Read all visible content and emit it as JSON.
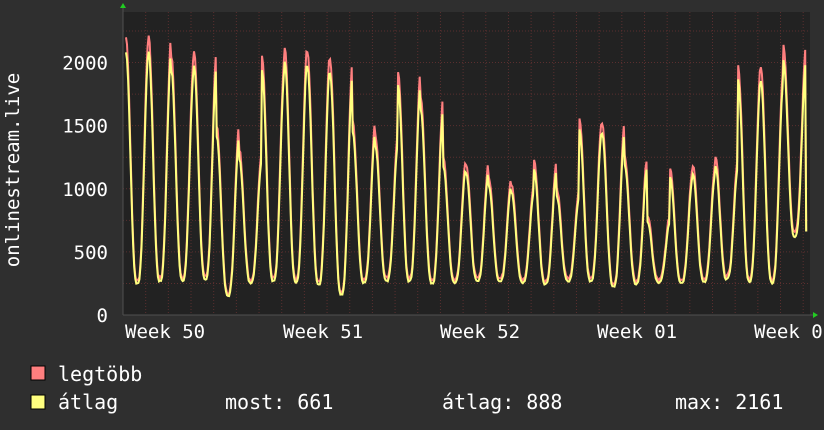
{
  "chart_data": {
    "type": "line",
    "ylabel": "onlinestream.live",
    "ylim": [
      0,
      2400
    ],
    "yticks": [
      0,
      500,
      1000,
      1500,
      2000
    ],
    "x_tick_labels": [
      "Week 50",
      "Week 51",
      "Week 52",
      "Week 01",
      "Week 0"
    ],
    "grid": true,
    "colors": {
      "background": "#2f2f2f",
      "plot_background": "#222222",
      "grid": "#5a2f2f",
      "axis": "#505050",
      "max_line": "#ff7f7f",
      "avg_line": "#ffff7f",
      "axis_arrow": "#22cc22"
    },
    "days": [
      {
        "peak": 2200,
        "trough": 270
      },
      {
        "peak": 2200,
        "trough": 290
      },
      {
        "peak": 2050,
        "trough": 300
      },
      {
        "peak": 2090,
        "trough": 300
      },
      {
        "peak": 1500,
        "trough": 170
      },
      {
        "peak": 1310,
        "trough": 280
      },
      {
        "peak": 2050,
        "trough": 290
      },
      {
        "peak": 2130,
        "trough": 280
      },
      {
        "peak": 2080,
        "trough": 260
      },
      {
        "peak": 2020,
        "trough": 180
      },
      {
        "peak": 1530,
        "trough": 280
      },
      {
        "peak": 1420,
        "trough": 290
      },
      {
        "peak": 1930,
        "trough": 290
      },
      {
        "peak": 1720,
        "trough": 270
      },
      {
        "peak": 1240,
        "trough": 280
      },
      {
        "peak": 1200,
        "trough": 290
      },
      {
        "peak": 1090,
        "trough": 290
      },
      {
        "peak": 1040,
        "trough": 280
      },
      {
        "peak": 1220,
        "trough": 270
      },
      {
        "peak": 1000,
        "trough": 290
      },
      {
        "peak": 1560,
        "trough": 290
      },
      {
        "peak": 1530,
        "trough": 250
      },
      {
        "peak": 1260,
        "trough": 270
      },
      {
        "peak": 790,
        "trough": 280
      },
      {
        "peak": 1160,
        "trough": 280
      },
      {
        "peak": 1190,
        "trough": 290
      },
      {
        "peak": 1250,
        "trough": 310
      },
      {
        "peak": 1970,
        "trough": 290
      },
      {
        "peak": 1960,
        "trough": 280
      },
      {
        "peak": 2130,
        "trough": 661
      }
    ],
    "series": [
      {
        "name": "legtöbb",
        "color": "#ff7f7f"
      },
      {
        "name": "átlag",
        "color": "#ffff7f"
      }
    ],
    "stats": {
      "most": "most: 661",
      "atlag": "átlag: 888",
      "max": "max: 2161"
    }
  }
}
